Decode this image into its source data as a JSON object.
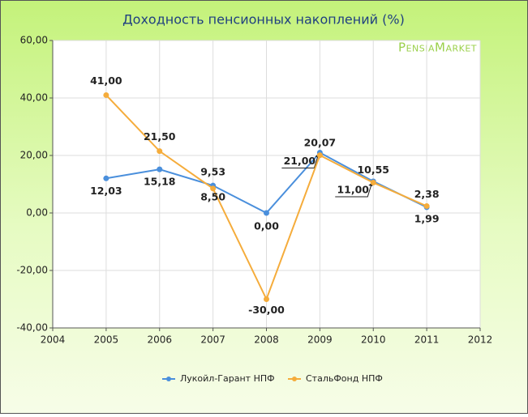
{
  "chart_data": {
    "type": "line",
    "title": "Доходность пенсионных накоплений (%)",
    "watermark": "PensiaMarket",
    "x": [
      2005,
      2006,
      2007,
      2008,
      2009,
      2010,
      2011
    ],
    "series": [
      {
        "name": "Лукойл-Гарант НПФ",
        "color": "#4a8fdc",
        "values": [
          12.03,
          15.18,
          9.53,
          0.0,
          21.0,
          11.0,
          1.99
        ],
        "value_labels": [
          "12,03",
          "15,18",
          "9,53",
          "0,00",
          "21,00",
          "11,00",
          "1,99"
        ]
      },
      {
        "name": "СтальФонд НПФ",
        "color": "#f5ac3b",
        "values": [
          41.0,
          21.5,
          8.5,
          -30.0,
          20.07,
          10.55,
          2.38
        ],
        "value_labels": [
          "41,00",
          "21,50",
          "8,50",
          "-30,00",
          "20,07",
          "10,55",
          "2,38"
        ]
      }
    ],
    "xlim": [
      2004,
      2012
    ],
    "xticks": [
      2004,
      2005,
      2006,
      2007,
      2008,
      2009,
      2010,
      2011,
      2012
    ],
    "ylim": [
      -40,
      60
    ],
    "yticks": [
      {
        "value": -40,
        "label": "-40,00"
      },
      {
        "value": -20,
        "label": "-20,00"
      },
      {
        "value": 0,
        "label": "0,00"
      },
      {
        "value": 20,
        "label": "20,00"
      },
      {
        "value": 40,
        "label": "40,00"
      },
      {
        "value": 60,
        "label": "60,00"
      }
    ],
    "grid": true,
    "legend": "bottom"
  }
}
